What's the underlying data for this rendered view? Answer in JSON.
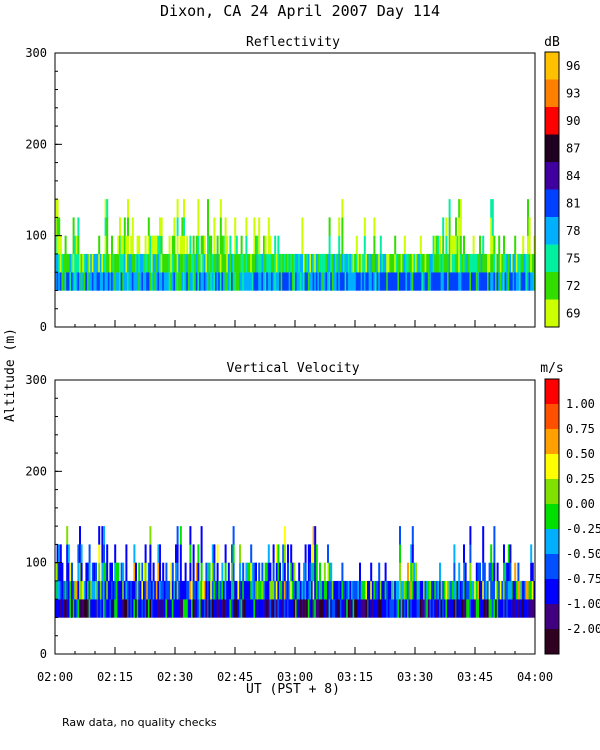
{
  "title": "Dixon, CA 24 April 2007  Day 114",
  "ylabel": "Altitude (m)",
  "xlabel": "UT  (PST + 8)",
  "footnote": "Raw data, no quality checks",
  "colors": {
    "reflectivity": [
      "#ccff00",
      "#33dd00",
      "#00f0a0",
      "#00b0ff",
      "#0040ff",
      "#4000a0",
      "#200020",
      "#ff0000",
      "#ff8000",
      "#ffc000"
    ],
    "velocity": [
      "#300020",
      "#400080",
      "#0000ff",
      "#0050ff",
      "#00b0ff",
      "#00e000",
      "#80e000",
      "#ffff00",
      "#ffa000",
      "#ff5000",
      "#ff0000"
    ]
  },
  "chart_data": [
    {
      "type": "heatmap",
      "title": "Reflectivity",
      "unit": "dB",
      "x_ticks": [
        "02:00",
        "02:15",
        "02:30",
        "02:45",
        "03:00",
        "03:15",
        "03:30",
        "03:45",
        "04:00"
      ],
      "x_range": [
        "02:00",
        "04:00"
      ],
      "y_ticks": [
        0,
        100,
        200,
        300
      ],
      "ylim": [
        0,
        300
      ],
      "data_altitude_range": [
        40,
        140
      ],
      "color_levels": [
        69,
        72,
        75,
        78,
        81,
        84,
        87,
        90,
        93,
        96
      ],
      "colorbar_labels": [
        "96",
        "93",
        "90",
        "87",
        "84",
        "81",
        "78",
        "75",
        "72",
        "69"
      ]
    },
    {
      "type": "heatmap",
      "title": "Vertical Velocity",
      "unit": "m/s",
      "x_ticks": [
        "02:00",
        "02:15",
        "02:30",
        "02:45",
        "03:00",
        "03:15",
        "03:30",
        "03:45",
        "04:00"
      ],
      "x_range": [
        "02:00",
        "04:00"
      ],
      "y_ticks": [
        0,
        100,
        200,
        300
      ],
      "ylim": [
        0,
        300
      ],
      "data_altitude_range": [
        40,
        140
      ],
      "color_levels": [
        -2.0,
        -1.0,
        -0.75,
        -0.5,
        -0.25,
        0.0,
        0.25,
        0.5,
        0.75,
        1.0
      ],
      "colorbar_labels": [
        "1.00",
        "0.75",
        "0.50",
        "0.25",
        "0.00",
        "-0.25",
        "-0.50",
        "-0.75",
        "-1.00",
        "-2.00"
      ]
    }
  ]
}
